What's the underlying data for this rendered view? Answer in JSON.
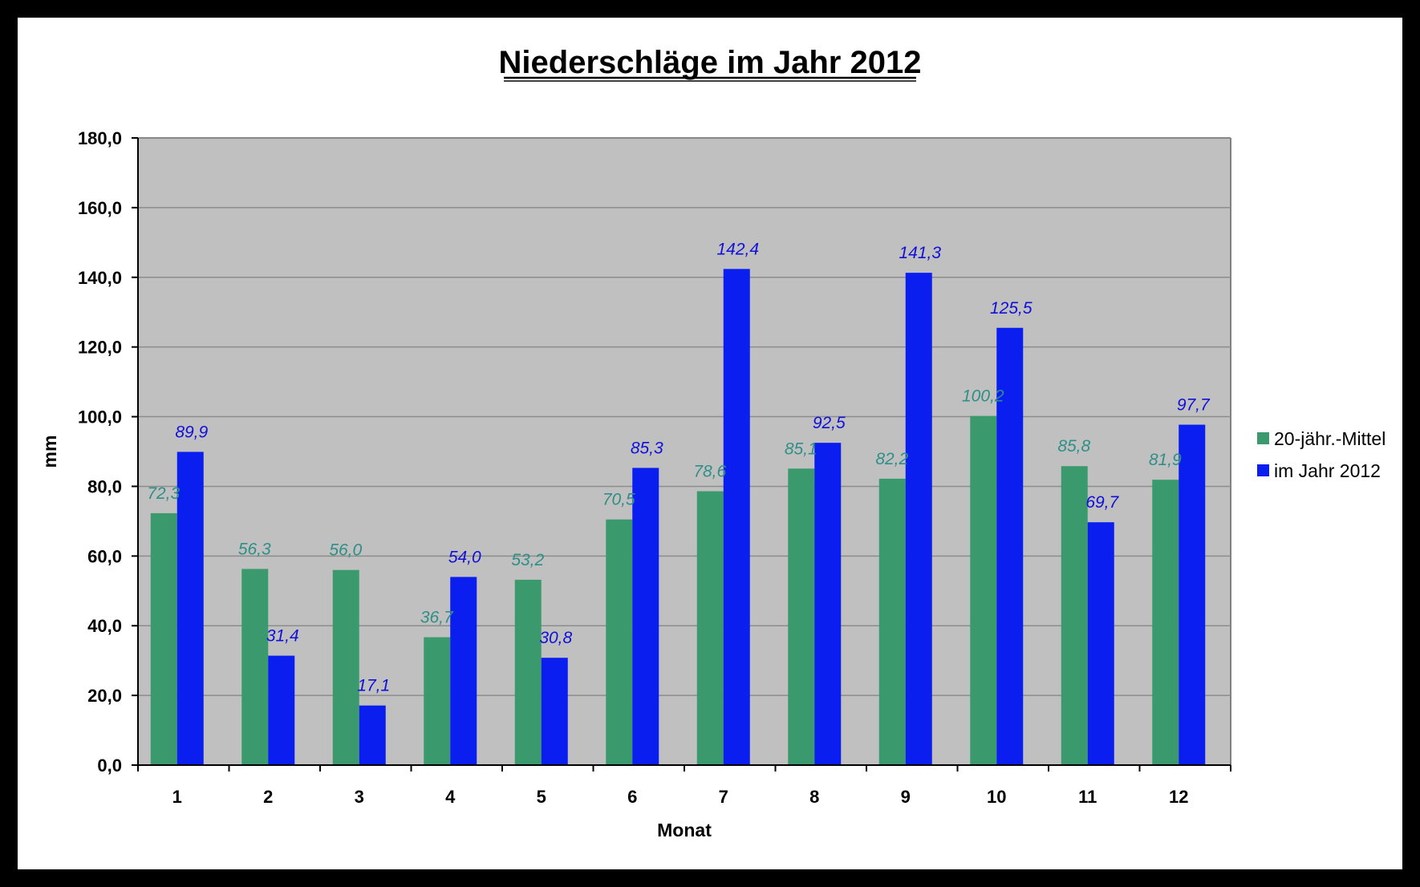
{
  "chart_data": {
    "type": "bar",
    "title": "Niederschläge im Jahr 2012",
    "xlabel": "Monat",
    "ylabel": "mm",
    "ylim": [
      0,
      180
    ],
    "yticks": [
      "0,0",
      "20,0",
      "40,0",
      "60,0",
      "80,0",
      "100,0",
      "120,0",
      "140,0",
      "160,0",
      "180,0"
    ],
    "categories": [
      "1",
      "2",
      "3",
      "4",
      "5",
      "6",
      "7",
      "8",
      "9",
      "10",
      "11",
      "12"
    ],
    "series": [
      {
        "name": "20-jähr.-Mittel",
        "color": "#3a9a6e",
        "label_color": "#2f8f86",
        "values": [
          72.3,
          56.3,
          56.0,
          36.7,
          53.2,
          70.5,
          78.6,
          85.1,
          82.2,
          100.2,
          85.8,
          81.9
        ],
        "labels": [
          "72,3",
          "56,3",
          "56,0",
          "36,7",
          "53,2",
          "70,5",
          "78,6",
          "85,1",
          "82,2",
          "100,2",
          "85,8",
          "81,9"
        ]
      },
      {
        "name": "im Jahr 2012",
        "color": "#0a1ef0",
        "label_color": "#1010d8",
        "values": [
          89.9,
          31.4,
          17.1,
          54.0,
          30.8,
          85.3,
          142.4,
          92.5,
          141.3,
          125.5,
          69.7,
          97.7
        ],
        "labels": [
          "89,9",
          "31,4",
          "17,1",
          "54,0",
          "30,8",
          "85,3",
          "142,4",
          "92,5",
          "141,3",
          "125,5",
          "69,7",
          "97,7"
        ]
      }
    ],
    "grid": true,
    "plot_background": "#c0c0c0",
    "legend_position": "right"
  }
}
